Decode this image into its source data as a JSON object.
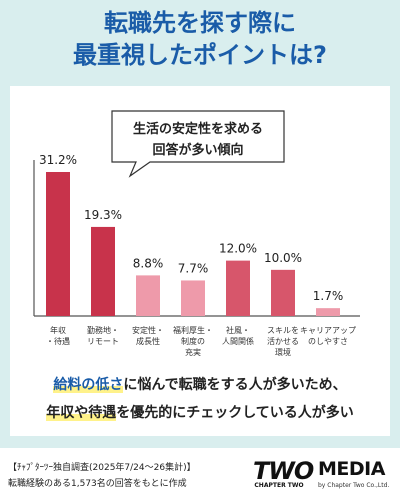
{
  "header": {
    "title_line1": "転職先を探す際に",
    "title_line2": "最重視したポイントは?"
  },
  "callout": {
    "line1": "生活の安定性を求める",
    "line2": "回答が多い傾向"
  },
  "chart_data": {
    "type": "bar",
    "categories": [
      [
        "年収",
        "・待遇"
      ],
      [
        "勤務地・",
        "リモート"
      ],
      [
        "安定性・",
        "成長性"
      ],
      [
        "福利厚生・",
        "制度の",
        "充実"
      ],
      [
        "社風・",
        "人間関係"
      ],
      [
        "スキルを",
        "活かせる",
        "環境"
      ],
      [
        "キャリアアップ",
        "のしやすさ"
      ]
    ],
    "values": [
      31.2,
      19.3,
      8.8,
      7.7,
      12.0,
      10.0,
      1.7
    ],
    "value_labels": [
      "31.2%",
      "19.3%",
      "8.8%",
      "7.7%",
      "12.0%",
      "10.0%",
      "1.7%"
    ],
    "ylim": [
      0,
      31.2
    ],
    "grid": false,
    "colors": [
      "#c8334b",
      "#c8334b",
      "#ee9aaa",
      "#ee9aaa",
      "#d7566b",
      "#d7566b",
      "#ee9aaa"
    ]
  },
  "summary": {
    "line1_hl": "給料の低さ",
    "line1_rest": "に悩んで転職をする人が多いため、",
    "line2_hl": "年収や待遇",
    "line2_rest": "を優先的にチェックしている人が多い"
  },
  "footer": {
    "source_line1": "【ﾁｬﾌﾟﾀｰﾂｰ独自調査(2025年7/24～26集計)】",
    "source_line2": "転職経験のある1,573名の回答をもとに作成",
    "logo_two": "TWO",
    "logo_two_sub": "CHAPTER TWO",
    "logo_media": "MEDIA",
    "logo_media_sub": "by Chapter Two Co.,Ltd."
  },
  "colors": {
    "title": "#1a5ca8",
    "background": "#d9eeee",
    "highlight": "#fff28a"
  }
}
